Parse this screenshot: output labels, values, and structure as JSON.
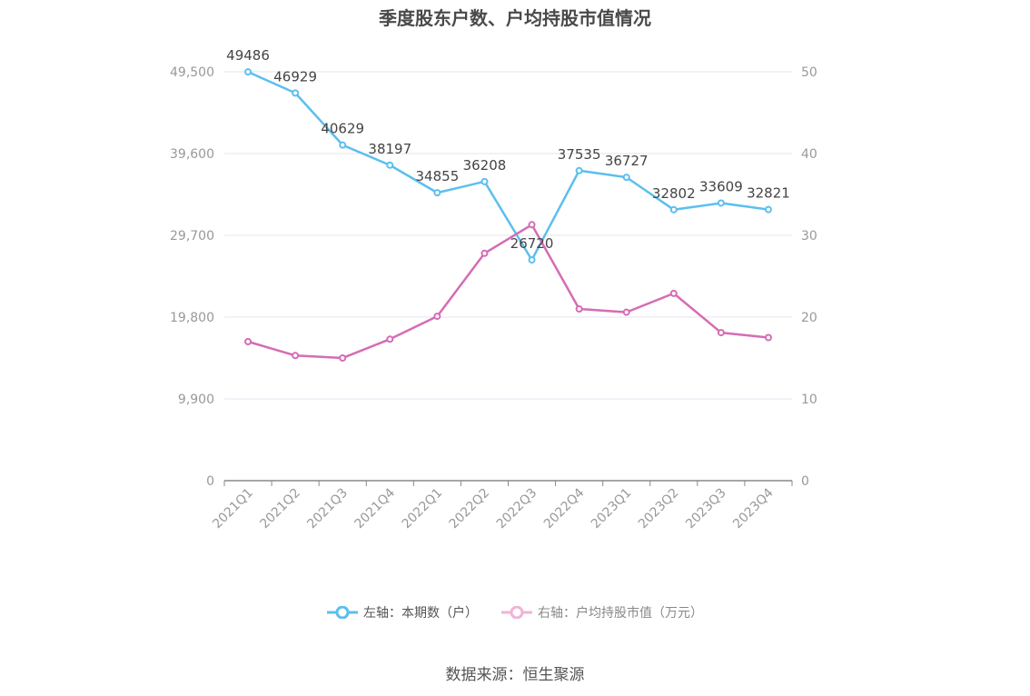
{
  "title": "季度股东户数、户均持股市值情况",
  "source": "数据来源：恒生聚源",
  "chart_data": {
    "type": "line",
    "title": "季度股东户数、户均持股市值情况",
    "categories": [
      "2021Q1",
      "2021Q2",
      "2021Q3",
      "2021Q4",
      "2022Q1",
      "2022Q2",
      "2022Q3",
      "2022Q4",
      "2023Q1",
      "2023Q2",
      "2023Q3",
      "2023Q4"
    ],
    "left_axis": {
      "ticks": [
        "0",
        "9,900",
        "19,800",
        "29,700",
        "39,600",
        "49,500"
      ],
      "min": 0,
      "max": 49500
    },
    "right_axis": {
      "ticks": [
        "0",
        "10",
        "20",
        "30",
        "40",
        "50"
      ],
      "min": 0,
      "max": 50
    },
    "series": [
      {
        "name": "左轴：本期数（户）",
        "axis": "left",
        "color": "#5bbfef",
        "values": [
          49486,
          46929,
          40629,
          38197,
          34855,
          36208,
          26720,
          37535,
          36727,
          32802,
          33609,
          32821
        ],
        "labels": [
          "49486",
          "46929",
          "40629",
          "38197",
          "34855",
          "36208",
          "26720",
          "37535",
          "36727",
          "32802",
          "33609",
          "32821"
        ]
      },
      {
        "name": "右轴：户均持股市值（万元）",
        "axis": "right",
        "color": "#d56cb4",
        "values": [
          17.0,
          15.3,
          15.0,
          17.3,
          20.1,
          27.8,
          31.3,
          21.0,
          20.6,
          22.9,
          18.1,
          17.5
        ]
      }
    ],
    "grid": true,
    "legend_position": "bottom"
  }
}
